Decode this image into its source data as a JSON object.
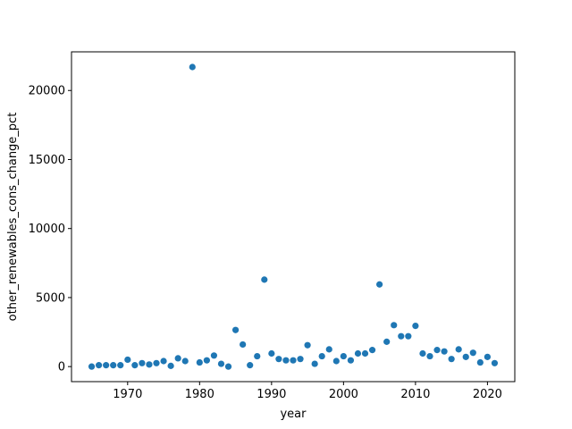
{
  "chart_data": {
    "type": "scatter",
    "title": "",
    "xlabel": "year",
    "ylabel": "other_renewables_cons_change_pct",
    "xlim": [
      1962.2,
      2023.8
    ],
    "ylim": [
      -1090,
      22800
    ],
    "xticks": [
      1970,
      1980,
      1990,
      2000,
      2010,
      2020
    ],
    "yticks": [
      0,
      5000,
      10000,
      15000,
      20000
    ],
    "grid": false,
    "legend": "none",
    "marker_color": "#1f77b4",
    "x": [
      1965,
      1966,
      1967,
      1968,
      1969,
      1970,
      1971,
      1972,
      1973,
      1974,
      1975,
      1976,
      1977,
      1978,
      1979,
      1980,
      1981,
      1982,
      1983,
      1984,
      1985,
      1986,
      1987,
      1988,
      1989,
      1990,
      1991,
      1992,
      1993,
      1994,
      1995,
      1996,
      1997,
      1998,
      1999,
      2000,
      2001,
      2002,
      2003,
      2004,
      2005,
      2006,
      2007,
      2008,
      2009,
      2010,
      2011,
      2012,
      2013,
      2014,
      2015,
      2016,
      2017,
      2018,
      2019,
      2020,
      2021
    ],
    "y": [
      0,
      100,
      100,
      100,
      100,
      500,
      100,
      250,
      150,
      250,
      400,
      50,
      600,
      400,
      21700,
      300,
      450,
      800,
      200,
      0,
      2650,
      1600,
      100,
      750,
      6300,
      950,
      550,
      450,
      450,
      550,
      1550,
      200,
      750,
      1250,
      400,
      750,
      450,
      950,
      950,
      1200,
      5950,
      1800,
      3000,
      2200,
      2200,
      2950,
      950,
      750,
      1200,
      1100,
      550,
      1250,
      700,
      1000,
      300,
      700,
      250
    ]
  }
}
